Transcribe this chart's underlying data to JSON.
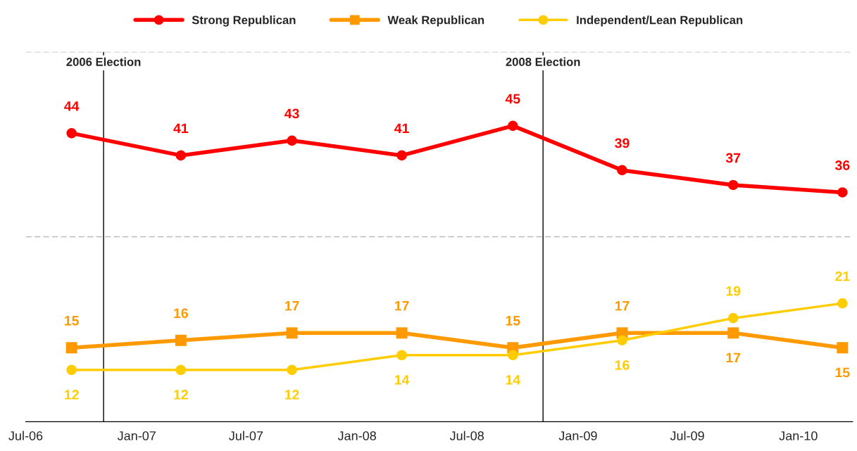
{
  "chart_data": {
    "type": "line",
    "x": [
      "2006-09-15",
      "2007-03-15",
      "2007-09-15",
      "2008-03-15",
      "2008-09-15",
      "2009-03-15",
      "2009-09-15",
      "2010-03-15"
    ],
    "series": [
      {
        "name": "Strong Republican",
        "color": "#ff0000",
        "marker": "circle",
        "values": [
          44,
          41,
          43,
          41,
          45,
          39,
          37,
          36
        ]
      },
      {
        "name": "Weak Republican",
        "color": "#ff9900",
        "marker": "square",
        "values": [
          15,
          16,
          17,
          17,
          15,
          17,
          17,
          15
        ]
      },
      {
        "name": "Independent/Lean Republican",
        "color": "#ffcc00",
        "marker": "circle",
        "values": [
          12,
          12,
          12,
          14,
          14,
          16,
          19,
          21
        ]
      }
    ],
    "xlim": [
      "2006-07-01",
      "2010-04-01"
    ],
    "xticks": [
      {
        "value": "2006-07-01",
        "label": "Jul-06"
      },
      {
        "value": "2007-01-01",
        "label": "Jan-07"
      },
      {
        "value": "2007-07-01",
        "label": "Jul-07"
      },
      {
        "value": "2008-01-01",
        "label": "Jan-08"
      },
      {
        "value": "2008-07-01",
        "label": "Jul-08"
      },
      {
        "value": "2009-01-01",
        "label": "Jan-09"
      },
      {
        "value": "2009-07-01",
        "label": "Jul-09"
      },
      {
        "value": "2010-01-01",
        "label": "Jan-10"
      }
    ],
    "ylim": [
      5,
      55
    ],
    "tick_labels": "x",
    "data_labels": true,
    "legend": "top",
    "line_style": "solid",
    "ref_lines": [
      {
        "axis": "x",
        "value": "2006-11-07",
        "label": "2006 Election",
        "color": "#000000"
      },
      {
        "axis": "x",
        "value": "2008-11-04",
        "label": "2008 Election",
        "color": "#000000"
      },
      {
        "axis": "y",
        "value": 30,
        "color": "#bbbbbb",
        "line_style": "dashed"
      },
      {
        "axis": "y",
        "value": 55,
        "color": "#bbbbbb",
        "line_style": "dashed"
      }
    ]
  }
}
